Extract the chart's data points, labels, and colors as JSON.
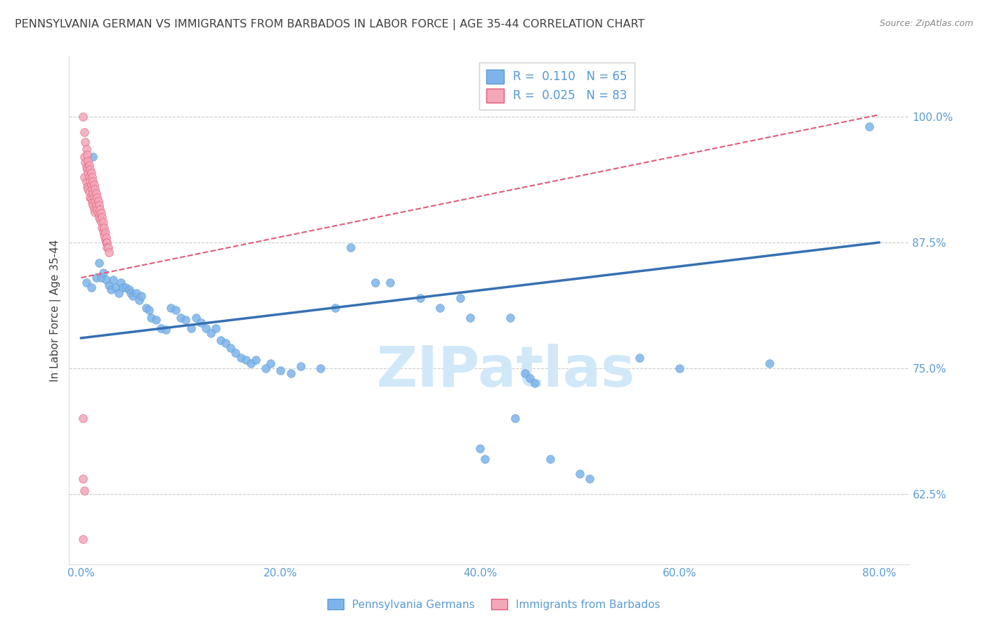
{
  "title": "PENNSYLVANIA GERMAN VS IMMIGRANTS FROM BARBADOS IN LABOR FORCE | AGE 35-44 CORRELATION CHART",
  "source": "Source: ZipAtlas.com",
  "ylabel": "In Labor Force | Age 35-44",
  "x_ticks": [
    "0.0%",
    "20.0%",
    "40.0%",
    "60.0%",
    "80.0%"
  ],
  "x_tick_vals": [
    0.0,
    0.2,
    0.4,
    0.6,
    0.8
  ],
  "y_ticks": [
    "62.5%",
    "75.0%",
    "87.5%",
    "100.0%"
  ],
  "y_tick_vals": [
    0.625,
    0.75,
    0.875,
    1.0
  ],
  "ylim": [
    0.555,
    1.06
  ],
  "xlim": [
    -0.012,
    0.83
  ],
  "blue_scatter": [
    [
      0.005,
      0.835
    ],
    [
      0.01,
      0.83
    ],
    [
      0.012,
      0.96
    ],
    [
      0.015,
      0.84
    ],
    [
      0.018,
      0.855
    ],
    [
      0.02,
      0.84
    ],
    [
      0.022,
      0.845
    ],
    [
      0.025,
      0.838
    ],
    [
      0.028,
      0.832
    ],
    [
      0.03,
      0.828
    ],
    [
      0.032,
      0.838
    ],
    [
      0.035,
      0.83
    ],
    [
      0.038,
      0.825
    ],
    [
      0.04,
      0.835
    ],
    [
      0.042,
      0.83
    ],
    [
      0.045,
      0.83
    ],
    [
      0.048,
      0.828
    ],
    [
      0.05,
      0.825
    ],
    [
      0.052,
      0.822
    ],
    [
      0.055,
      0.825
    ],
    [
      0.058,
      0.818
    ],
    [
      0.06,
      0.822
    ],
    [
      0.065,
      0.81
    ],
    [
      0.068,
      0.808
    ],
    [
      0.07,
      0.8
    ],
    [
      0.075,
      0.798
    ],
    [
      0.08,
      0.79
    ],
    [
      0.085,
      0.788
    ],
    [
      0.09,
      0.81
    ],
    [
      0.095,
      0.808
    ],
    [
      0.1,
      0.8
    ],
    [
      0.105,
      0.798
    ],
    [
      0.11,
      0.79
    ],
    [
      0.115,
      0.8
    ],
    [
      0.12,
      0.795
    ],
    [
      0.125,
      0.79
    ],
    [
      0.13,
      0.785
    ],
    [
      0.135,
      0.79
    ],
    [
      0.14,
      0.778
    ],
    [
      0.145,
      0.775
    ],
    [
      0.15,
      0.77
    ],
    [
      0.155,
      0.765
    ],
    [
      0.16,
      0.76
    ],
    [
      0.165,
      0.758
    ],
    [
      0.17,
      0.755
    ],
    [
      0.175,
      0.758
    ],
    [
      0.185,
      0.75
    ],
    [
      0.19,
      0.755
    ],
    [
      0.2,
      0.748
    ],
    [
      0.21,
      0.745
    ],
    [
      0.22,
      0.752
    ],
    [
      0.24,
      0.75
    ],
    [
      0.255,
      0.81
    ],
    [
      0.27,
      0.87
    ],
    [
      0.295,
      0.835
    ],
    [
      0.31,
      0.835
    ],
    [
      0.34,
      0.82
    ],
    [
      0.36,
      0.81
    ],
    [
      0.38,
      0.82
    ],
    [
      0.39,
      0.8
    ],
    [
      0.4,
      0.67
    ],
    [
      0.405,
      0.66
    ],
    [
      0.43,
      0.8
    ],
    [
      0.435,
      0.7
    ],
    [
      0.445,
      0.745
    ],
    [
      0.45,
      0.74
    ],
    [
      0.455,
      0.735
    ],
    [
      0.47,
      0.66
    ],
    [
      0.5,
      0.645
    ],
    [
      0.51,
      0.64
    ],
    [
      0.56,
      0.76
    ],
    [
      0.6,
      0.75
    ],
    [
      0.69,
      0.755
    ],
    [
      0.79,
      0.99
    ]
  ],
  "pink_scatter": [
    [
      0.002,
      1.0
    ],
    [
      0.003,
      0.985
    ],
    [
      0.003,
      0.96
    ],
    [
      0.003,
      0.94
    ],
    [
      0.004,
      0.975
    ],
    [
      0.004,
      0.955
    ],
    [
      0.005,
      0.968
    ],
    [
      0.005,
      0.95
    ],
    [
      0.005,
      0.935
    ],
    [
      0.006,
      0.962
    ],
    [
      0.006,
      0.948
    ],
    [
      0.006,
      0.93
    ],
    [
      0.007,
      0.956
    ],
    [
      0.007,
      0.944
    ],
    [
      0.007,
      0.928
    ],
    [
      0.008,
      0.952
    ],
    [
      0.008,
      0.94
    ],
    [
      0.008,
      0.925
    ],
    [
      0.009,
      0.948
    ],
    [
      0.009,
      0.936
    ],
    [
      0.009,
      0.92
    ],
    [
      0.01,
      0.944
    ],
    [
      0.01,
      0.932
    ],
    [
      0.01,
      0.918
    ],
    [
      0.011,
      0.94
    ],
    [
      0.011,
      0.928
    ],
    [
      0.011,
      0.915
    ],
    [
      0.012,
      0.936
    ],
    [
      0.012,
      0.924
    ],
    [
      0.012,
      0.912
    ],
    [
      0.013,
      0.932
    ],
    [
      0.013,
      0.92
    ],
    [
      0.013,
      0.908
    ],
    [
      0.014,
      0.928
    ],
    [
      0.014,
      0.916
    ],
    [
      0.014,
      0.905
    ],
    [
      0.015,
      0.924
    ],
    [
      0.015,
      0.912
    ],
    [
      0.016,
      0.92
    ],
    [
      0.016,
      0.908
    ],
    [
      0.017,
      0.916
    ],
    [
      0.017,
      0.904
    ],
    [
      0.018,
      0.912
    ],
    [
      0.018,
      0.9
    ],
    [
      0.019,
      0.908
    ],
    [
      0.019,
      0.898
    ],
    [
      0.02,
      0.904
    ],
    [
      0.02,
      0.895
    ],
    [
      0.021,
      0.9
    ],
    [
      0.021,
      0.89
    ],
    [
      0.022,
      0.895
    ],
    [
      0.022,
      0.886
    ],
    [
      0.023,
      0.89
    ],
    [
      0.023,
      0.882
    ],
    [
      0.024,
      0.885
    ],
    [
      0.024,
      0.878
    ],
    [
      0.025,
      0.88
    ],
    [
      0.025,
      0.875
    ],
    [
      0.026,
      0.875
    ],
    [
      0.026,
      0.87
    ],
    [
      0.027,
      0.87
    ],
    [
      0.028,
      0.865
    ],
    [
      0.002,
      0.7
    ],
    [
      0.002,
      0.64
    ],
    [
      0.003,
      0.628
    ],
    [
      0.002,
      0.58
    ]
  ],
  "blue_line": {
    "x": [
      0.0,
      0.8
    ],
    "y": [
      0.78,
      0.875
    ]
  },
  "pink_line": {
    "x": [
      0.0,
      0.8
    ],
    "y": [
      0.84,
      1.002
    ]
  },
  "watermark": "ZIPatlas",
  "watermark_color": "#D0E8F8",
  "background_color": "#FFFFFF",
  "grid_color": "#CCCCCC",
  "axis_color": "#5B9BD5",
  "title_color": "#404040",
  "title_fontsize": 11.5,
  "scatter_blue_color": "#7EB4EA",
  "scatter_pink_color": "#F4A7B9",
  "scatter_blue_edge": "#5B9BD5",
  "scatter_pink_edge": "#E05C7A",
  "scatter_size": 70,
  "legend_box_color": "#FFFFFF",
  "legend_border_color": "#CCCCCC"
}
